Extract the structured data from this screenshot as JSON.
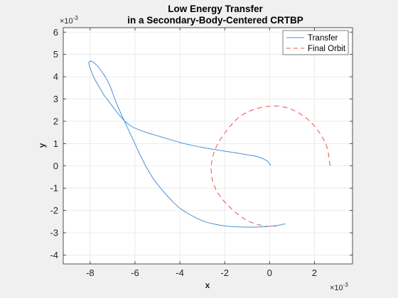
{
  "chart_data": {
    "type": "line",
    "title": [
      "Low Energy Transfer",
      "in a Secondary-Body-Centered CRTBP"
    ],
    "xlabel": "x",
    "ylabel": "y",
    "x_multiplier": "×10",
    "x_exponent": "-3",
    "y_multiplier": "×10",
    "y_exponent": "-3",
    "xlim": [
      -9.2,
      3.7
    ],
    "ylim": [
      -4.4,
      6.2
    ],
    "xticks": [
      -8,
      -6,
      -4,
      -2,
      0,
      2
    ],
    "xtick_labels": [
      "-8",
      "-6",
      "-4",
      "-2",
      "0",
      "2"
    ],
    "yticks": [
      -4,
      -3,
      -2,
      -1,
      0,
      1,
      2,
      3,
      4,
      5,
      6
    ],
    "ytick_labels": [
      "-4",
      "-3",
      "-2",
      "-1",
      "0",
      "1",
      "2",
      "3",
      "4",
      "5",
      "6"
    ],
    "grid": true,
    "legend": {
      "position": "top-right",
      "entries": [
        "Transfer",
        "Final Orbit"
      ]
    },
    "series": [
      {
        "name": "Transfer",
        "color": "#4a90d9",
        "style": "solid",
        "x": [
          0.05,
          0.0,
          -0.15,
          -0.5,
          -1.0,
          -1.5,
          -2.0,
          -2.5,
          -3.0,
          -3.5,
          -4.0,
          -4.5,
          -5.0,
          -5.5,
          -5.9,
          -6.2,
          -6.5,
          -6.8,
          -7.1,
          -7.4,
          -7.6,
          -7.8,
          -7.95,
          -8.05,
          -8.05,
          -7.95,
          -7.8,
          -7.65,
          -7.5,
          -7.3,
          -7.1,
          -6.9,
          -6.65,
          -6.4,
          -6.1,
          -5.8,
          -5.5,
          -5.2,
          -4.9,
          -4.6,
          -4.3,
          -4.0,
          -3.7,
          -3.3,
          -2.9,
          -2.5,
          -2.1,
          -1.7,
          -1.3,
          -0.9,
          -0.5,
          -0.1,
          0.3,
          0.7
        ],
        "y": [
          0.0,
          0.1,
          0.25,
          0.4,
          0.5,
          0.58,
          0.66,
          0.74,
          0.83,
          0.93,
          1.05,
          1.2,
          1.35,
          1.5,
          1.65,
          1.8,
          2.05,
          2.4,
          2.8,
          3.2,
          3.55,
          3.9,
          4.25,
          4.55,
          4.65,
          4.7,
          4.6,
          4.45,
          4.25,
          3.95,
          3.55,
          3.0,
          2.4,
          1.85,
          1.2,
          0.55,
          -0.05,
          -0.55,
          -0.95,
          -1.3,
          -1.62,
          -1.9,
          -2.1,
          -2.32,
          -2.5,
          -2.6,
          -2.68,
          -2.72,
          -2.74,
          -2.75,
          -2.74,
          -2.72,
          -2.68,
          -2.6
        ]
      },
      {
        "name": "Final Orbit",
        "color": "#e8504f",
        "style": "dashed",
        "x": [
          2.7,
          2.5,
          1.8,
          0.8,
          -0.2,
          -1.2,
          -1.9,
          -2.4,
          -2.6,
          -2.5,
          -2.1,
          -1.5,
          -0.9,
          -0.2,
          0.3
        ],
        "y": [
          0.0,
          1.0,
          2.0,
          2.6,
          2.65,
          2.3,
          1.6,
          0.8,
          0.0,
          -0.8,
          -1.5,
          -2.1,
          -2.5,
          -2.7,
          -2.7
        ]
      }
    ]
  }
}
